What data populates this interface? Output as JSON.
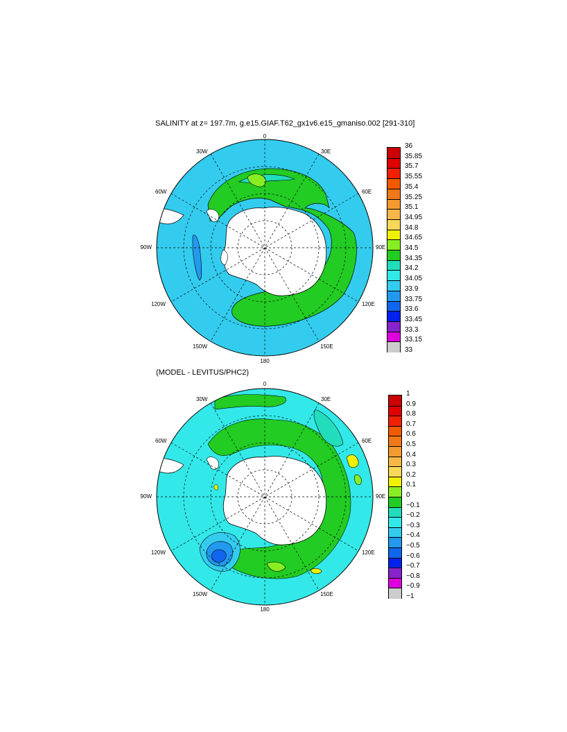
{
  "plot1": {
    "title": "SALINITY at z= 197.7m, g.e15.GIAF.T62_gx1v6.e15_gmaniso.002 [291-310]",
    "lon_labels": {
      "top": "0",
      "bottom": "180",
      "left": "90W",
      "right": "90E",
      "nw": "30W",
      "ne": "30E",
      "wnw": "60W",
      "ene": "60E",
      "wsw": "120W",
      "ese": "120E",
      "sw": "150W",
      "se": "150E"
    },
    "colorbar": {
      "labels": [
        "36",
        "35.85",
        "35.7",
        "35.55",
        "35.4",
        "35.25",
        "35.1",
        "34.95",
        "34.8",
        "34.65",
        "34.5",
        "34.35",
        "34.2",
        "34.05",
        "33.9",
        "33.75",
        "33.6",
        "33.45",
        "33.3",
        "33.15",
        "33"
      ],
      "colors": [
        "#cc0000",
        "#e00000",
        "#f02000",
        "#f25a00",
        "#f07818",
        "#f59a30",
        "#f8b848",
        "#f8d858",
        "#f0f000",
        "#88ee22",
        "#22cc22",
        "#22ddbb",
        "#33e8e8",
        "#33ccee",
        "#2299ee",
        "#1166ee",
        "#0022ee",
        "#8822cc",
        "#dd00dd",
        "#cccccc",
        "#777777"
      ]
    }
  },
  "plot2": {
    "title": "(MODEL - LEVITUS/PHC2)",
    "lon_labels": {
      "top": "0",
      "bottom": "180",
      "left": "90W",
      "right": "90E",
      "nw": "30W",
      "ne": "30E",
      "wnw": "60W",
      "ene": "60E",
      "wsw": "120W",
      "ese": "120E",
      "sw": "150W",
      "se": "150E"
    },
    "colorbar": {
      "labels": [
        "1",
        "0.9",
        "0.8",
        "0.7",
        "0.6",
        "0.5",
        "0.4",
        "0.3",
        "0.2",
        "0.1",
        "0",
        "−0.1",
        "−0.2",
        "−0.3",
        "−0.4",
        "−0.5",
        "−0.6",
        "−0.7",
        "−0.8",
        "−0.9",
        "−1"
      ],
      "colors": [
        "#cc0000",
        "#e00000",
        "#f02000",
        "#f25a00",
        "#f07818",
        "#f59a30",
        "#f8b848",
        "#f8d858",
        "#f0f000",
        "#88ee22",
        "#22cc22",
        "#22ddbb",
        "#33e8e8",
        "#33ccee",
        "#2299ee",
        "#1166ee",
        "#0022ee",
        "#8822cc",
        "#dd00dd",
        "#cccccc",
        "#777777"
      ]
    }
  }
}
